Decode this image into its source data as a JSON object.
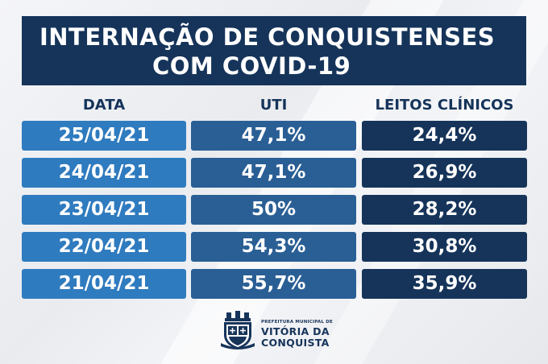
{
  "title": {
    "line1": "INTERNAÇÃO DE CONQUISTENSES",
    "line2": "COM COVID-19"
  },
  "columns": [
    "DATA",
    "UTI",
    "LEITOS CLÍNICOS"
  ],
  "rows": [
    {
      "date": "25/04/21",
      "uti": "47,1%",
      "leitos": "24,4%"
    },
    {
      "date": "24/04/21",
      "uti": "47,1%",
      "leitos": "26,9%"
    },
    {
      "date": "23/04/21",
      "uti": "50%",
      "leitos": "28,2%"
    },
    {
      "date": "22/04/21",
      "uti": "54,3%",
      "leitos": "30,8%"
    },
    {
      "date": "21/04/21",
      "uti": "55,7%",
      "leitos": "35,9%"
    }
  ],
  "logo": {
    "small_text": "PREFEITURA MUNICIPAL DE",
    "line1": "VITÓRIA DA",
    "line2": "CONQUISTA",
    "icon": "city-coat-of-arms-icon"
  },
  "colors": {
    "navy": "#16345a",
    "mid_blue": "#2a5f95",
    "light_blue": "#2f7bbf",
    "background": "#eceef2"
  }
}
